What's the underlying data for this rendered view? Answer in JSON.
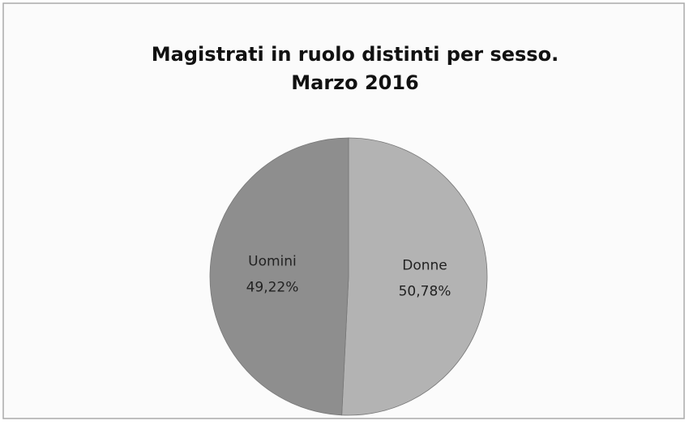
{
  "chart_data": {
    "type": "pie",
    "title": "Magistrati in ruolo distinti per sesso.",
    "subtitle": "Marzo 2016",
    "categories": [
      "Donne",
      "Uomini"
    ],
    "values": [
      50.78,
      49.22
    ],
    "value_labels": [
      "50,78%",
      "49,22%"
    ],
    "colors": [
      "#b3b3b3",
      "#8e8e8e"
    ]
  }
}
